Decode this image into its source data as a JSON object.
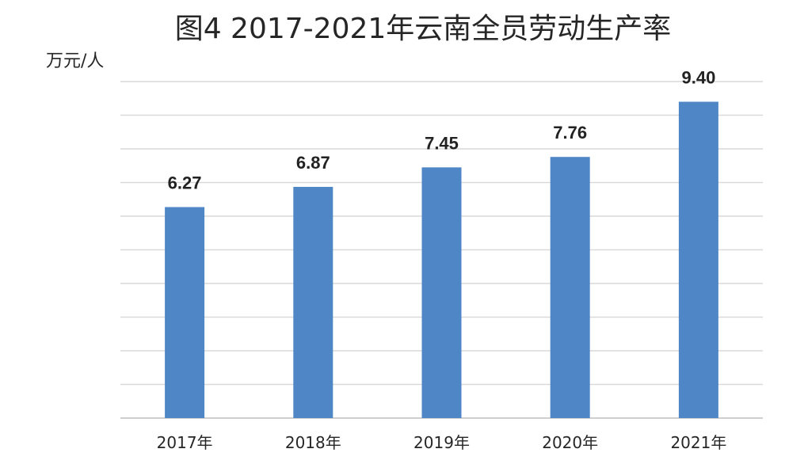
{
  "chart_data": {
    "type": "bar",
    "title": "图4  2017-2021年云南全员劳动生产率",
    "ylabel": "万元/人",
    "xlabel": "",
    "categories": [
      "2017年",
      "2018年",
      "2019年",
      "2020年",
      "2021年"
    ],
    "values": [
      6.27,
      6.87,
      7.45,
      7.76,
      9.4
    ],
    "data_labels": [
      "6.27",
      "6.87",
      "7.45",
      "7.76",
      "9.40"
    ],
    "ylim": [
      0,
      10
    ],
    "grid": true,
    "legend": "none",
    "colors": {
      "bar": "#4f86c6",
      "grid": "#d9d9d9"
    }
  }
}
